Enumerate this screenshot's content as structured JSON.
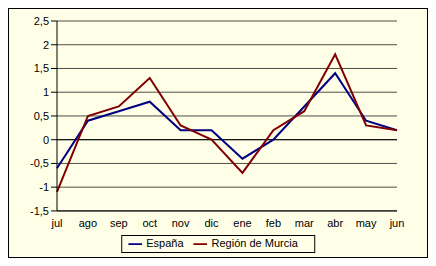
{
  "chart_data": {
    "type": "line",
    "categories": [
      "jul",
      "ago",
      "sep",
      "oct",
      "nov",
      "dic",
      "ene",
      "feb",
      "mar",
      "abr",
      "may",
      "jun"
    ],
    "series": [
      {
        "name": "España",
        "color": "#000080",
        "line_style": "solid",
        "values": [
          -0.6,
          0.4,
          0.6,
          0.8,
          0.2,
          0.2,
          -0.4,
          0.0,
          0.7,
          1.4,
          0.4,
          0.2
        ]
      },
      {
        "name": "Región de Murcia",
        "color": "#800000",
        "line_style": "solid",
        "values": [
          -1.1,
          0.5,
          0.7,
          1.3,
          0.3,
          0.0,
          -0.7,
          0.2,
          0.6,
          1.8,
          0.3,
          0.2
        ]
      }
    ],
    "ylim": [
      -1.5,
      2.5
    ],
    "yticks": [
      {
        "value": 2.5,
        "label": "2,5"
      },
      2,
      {
        "value": 1.5,
        "label": "1,5"
      },
      1,
      {
        "value": 0.5,
        "label": "0,5"
      },
      0,
      {
        "value": -0.5,
        "label": "-0,5"
      },
      -1,
      {
        "value": -1.5,
        "label": "-1,5"
      }
    ],
    "grid": true,
    "legend": "bottom"
  }
}
